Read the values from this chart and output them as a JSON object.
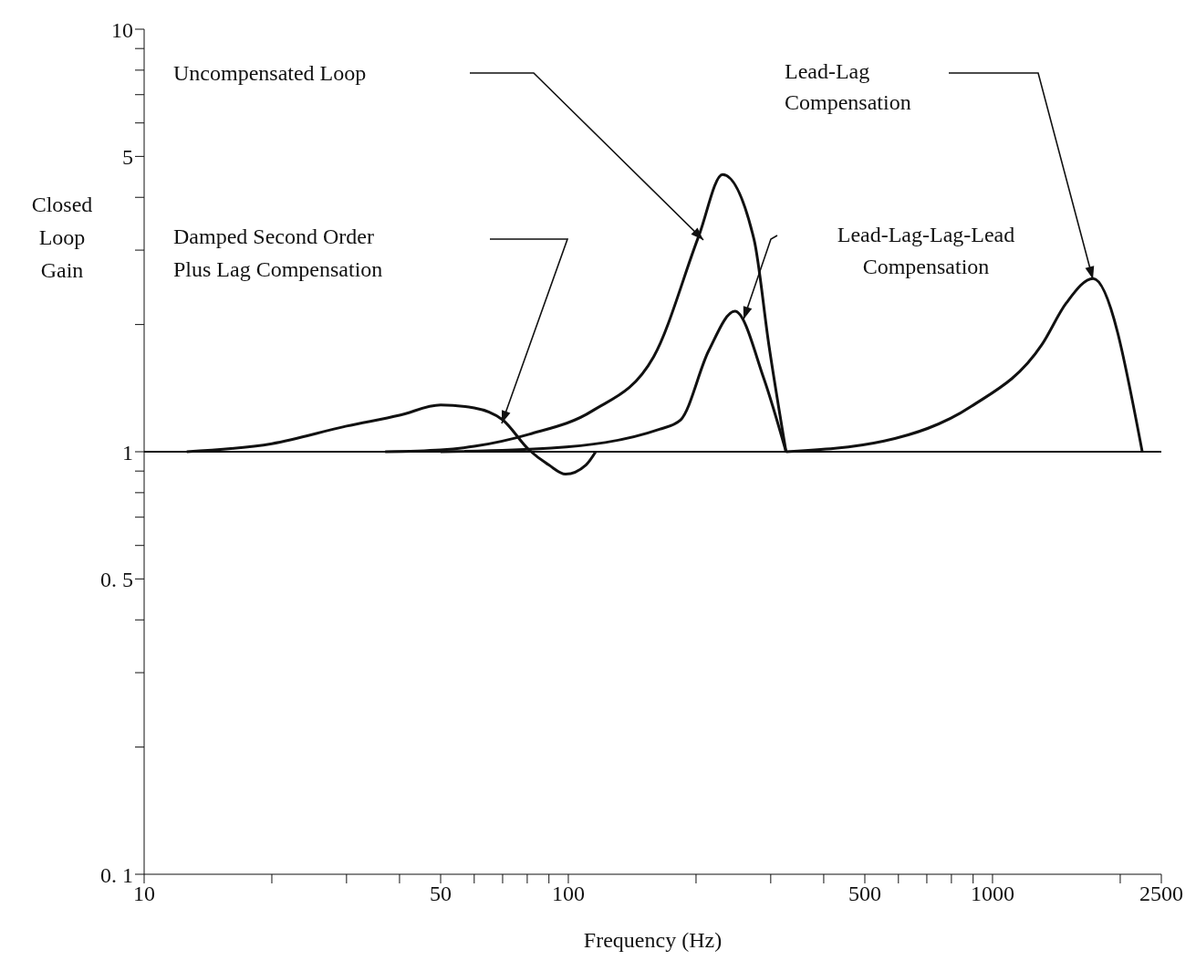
{
  "chart_data": {
    "type": "line",
    "xlabel": "Frequency (Hz)",
    "ylabel": "Closed Loop Gain",
    "log": "xy",
    "xlim": [
      10,
      2500
    ],
    "ylim": [
      0.1,
      10
    ],
    "xticks": [
      10,
      {
        "value": 20,
        "label": null
      },
      {
        "value": 30,
        "label": null
      },
      {
        "value": 40,
        "label": null
      },
      50,
      {
        "value": 60,
        "label": null
      },
      {
        "value": 70,
        "label": null
      },
      {
        "value": 80,
        "label": null
      },
      {
        "value": 90,
        "label": null
      },
      100,
      {
        "value": 200,
        "label": null
      },
      {
        "value": 300,
        "label": null
      },
      {
        "value": 400,
        "label": null
      },
      500,
      {
        "value": 600,
        "label": null
      },
      {
        "value": 700,
        "label": null
      },
      {
        "value": 800,
        "label": null
      },
      {
        "value": 900,
        "label": null
      },
      1000,
      {
        "value": 2000,
        "label": null
      },
      2500
    ],
    "yticks": [
      {
        "value": 0.1,
        "label": "0. 1"
      },
      {
        "value": 0.2,
        "label": null
      },
      {
        "value": 0.3,
        "label": null
      },
      {
        "value": 0.4,
        "label": null
      },
      {
        "value": 0.5,
        "label": "0. 5"
      },
      {
        "value": 0.6,
        "label": null
      },
      {
        "value": 0.7,
        "label": null
      },
      {
        "value": 0.8,
        "label": null
      },
      {
        "value": 0.9,
        "label": null
      },
      1,
      {
        "value": 2,
        "label": null
      },
      {
        "value": 3,
        "label": null
      },
      {
        "value": 4,
        "label": null
      },
      5,
      {
        "value": 6,
        "label": null
      },
      {
        "value": 7,
        "label": null
      },
      {
        "value": 8,
        "label": null
      },
      {
        "value": 9,
        "label": null
      },
      10
    ],
    "marker": "none",
    "line_style": "solid",
    "series": [
      {
        "color": "#111111",
        "x": [
          12.6,
          20,
          30,
          40,
          50,
          60,
          70,
          80.8,
          90,
          98.5,
          110,
          116
        ],
        "values": [
          1,
          1.045,
          1.15,
          1.22,
          1.29,
          1.27,
          1.19,
          1.01,
          0.93,
          0.885,
          0.93,
          1
        ]
      },
      {
        "color": "#111111",
        "x": [
          37,
          50,
          60,
          80.8,
          114,
          159,
          203,
          231,
          274,
          297,
          326
        ],
        "values": [
          1,
          1.01,
          1.03,
          1.1,
          1.25,
          1.68,
          3.24,
          4.53,
          3.18,
          1.79,
          1
        ]
      },
      {
        "color": "#111111",
        "x": [
          50,
          91,
          164,
          184,
          214,
          247,
          289,
          326
        ],
        "values": [
          1,
          1.02,
          1.13,
          1.19,
          1.73,
          2.15,
          1.49,
          1
        ]
      },
      {
        "color": "#111111",
        "x": [
          326,
          555,
          891,
          1306,
          1493,
          1726,
          2254
        ],
        "values": [
          1,
          1.06,
          1.28,
          1.79,
          2.25,
          2.57,
          1
        ]
      }
    ],
    "ref_lines": [
      {
        "axis": "y",
        "value": 1,
        "color": "#111111",
        "line_style": "solid"
      }
    ],
    "annotations": [
      "Uncompensated Loop",
      "Damped Second Order\nPlus Lag Compensation",
      "Lead-Lag-Lag-Lead\nCompensation",
      "Lead-Lag\nCompensation"
    ]
  }
}
